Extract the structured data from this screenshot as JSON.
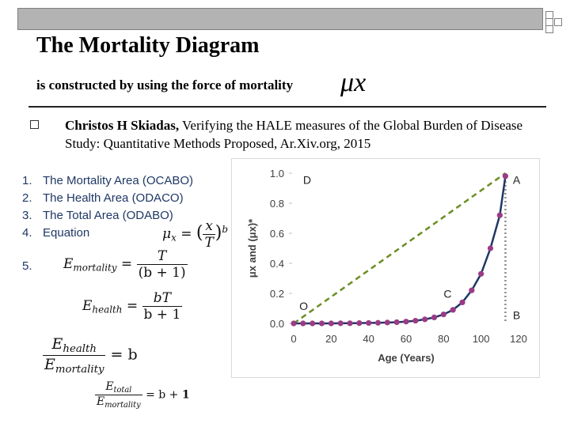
{
  "slide": {
    "title": "The Mortality Diagram",
    "subtitle": "is constructed by using the force of mortality",
    "mu_symbol": "μx",
    "reference_author": "Christos H Skiadas,",
    "reference_rest": " Verifying the HALE measures of the Global Burden of Disease Study: Quantitative Methods Proposed, Ar.Xiv.org, 2015"
  },
  "list": {
    "items": [
      {
        "num": "1.",
        "label": "The Mortality Area (OCABO)"
      },
      {
        "num": "2.",
        "label": "The Health Area (ODACO)"
      },
      {
        "num": "3.",
        "label": "The Total Area (ODABO)"
      },
      {
        "num": "4.",
        "label": "Equation"
      }
    ],
    "item5_num": "5."
  },
  "equations": {
    "eq4_lhs": "μ",
    "eq4_lhs_sub": "x",
    "eq4_frac_num": "x",
    "eq4_frac_den": "T",
    "eq4_exp": "b",
    "e_mortality_lhs": "E",
    "e_mortality_sub": "mortality",
    "e_mortality_num": "T",
    "e_mortality_den": "(b + 1)",
    "e_health_lhs": "E",
    "e_health_sub": "health",
    "e_health_num": "bT",
    "e_health_den": "b + 1",
    "ratio_num": "E",
    "ratio_num_sub": "health",
    "ratio_den": "E",
    "ratio_den_sub": "mortality",
    "ratio_rhs": "= b",
    "total_num": "E",
    "total_num_sub": "total",
    "total_den": "E",
    "total_den_sub": "mortality",
    "total_rhs_b": "= b + ",
    "total_rhs_1": "1"
  },
  "chart_data": {
    "type": "line",
    "xlabel": "Age (Years)",
    "ylabel": "μx and (μx)*",
    "xlim": [
      0,
      120
    ],
    "ylim": [
      0,
      1.0
    ],
    "x_ticks": [
      "0",
      "20",
      "40",
      "60",
      "80",
      "100",
      "120"
    ],
    "y_ticks": [
      "0.0",
      "0.2",
      "0.4",
      "0.6",
      "0.8",
      "1.0"
    ],
    "series": [
      {
        "values_x": [
          0,
          5,
          10,
          15,
          20,
          25,
          30,
          35,
          40,
          45,
          50,
          55,
          60,
          65,
          70,
          75,
          80,
          85,
          90,
          95,
          100,
          105,
          110,
          113
        ],
        "values_y": [
          0.0,
          0.0,
          0.0,
          0.0,
          0.0,
          0.001,
          0.001,
          0.002,
          0.003,
          0.004,
          0.006,
          0.008,
          0.012,
          0.018,
          0.027,
          0.04,
          0.06,
          0.09,
          0.14,
          0.22,
          0.33,
          0.5,
          0.72,
          0.98
        ]
      }
    ],
    "dashed_diagonal": {
      "from": [
        0,
        0
      ],
      "to": [
        113,
        1.0
      ]
    },
    "vertical_line_x": 113,
    "point_labels": [
      {
        "label": "D",
        "x": 5,
        "y": 0.93
      },
      {
        "label": "A",
        "x": 117,
        "y": 0.93
      },
      {
        "label": "O",
        "x": 3,
        "y": 0.09
      },
      {
        "label": "C",
        "x": 80,
        "y": 0.17
      },
      {
        "label": "B",
        "x": 117,
        "y": 0.03
      }
    ],
    "colors": {
      "curve": "#1f3864",
      "markers": "#9b3b86",
      "diagonal": "#6b8e23",
      "vertical": "#8c8c8c"
    }
  }
}
